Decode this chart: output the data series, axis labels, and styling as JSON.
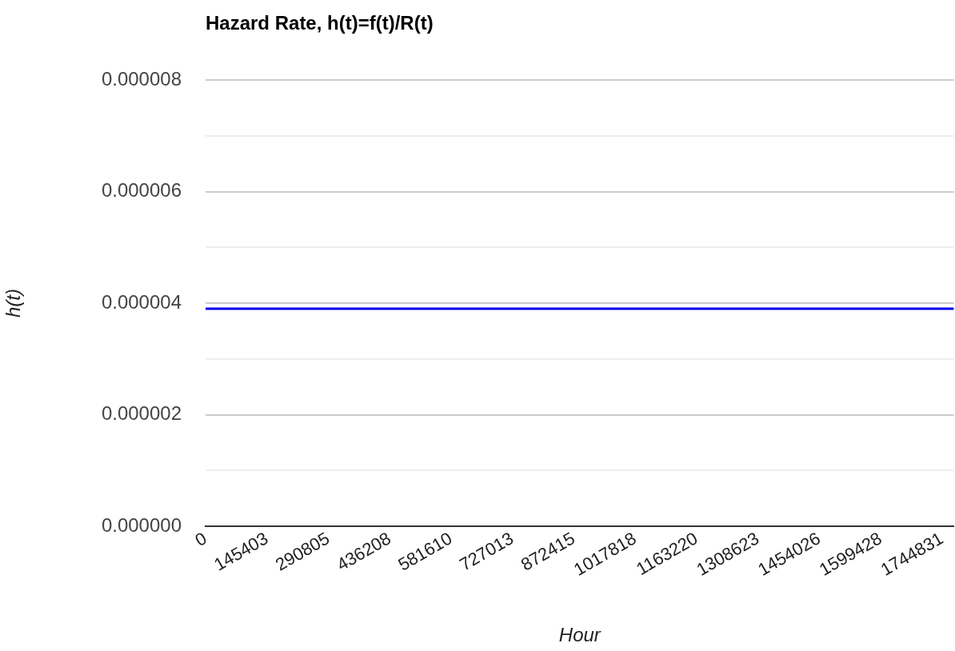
{
  "chart_data": {
    "type": "line",
    "title": "Hazard Rate, h(t)=f(t)/R(t)",
    "xlabel": "Hour",
    "ylabel": "h(t)",
    "x": [
      0,
      1773000
    ],
    "series": [
      {
        "color": "#0000ee",
        "values": [
          3.9e-06,
          3.9e-06
        ]
      }
    ],
    "xlim": [
      0,
      1773000
    ],
    "xticks": [
      0,
      145403,
      290805,
      436208,
      581610,
      727013,
      872415,
      1017818,
      1163220,
      1308623,
      1454026,
      1599428,
      1744831
    ],
    "ylim": [
      0,
      8e-06
    ],
    "yticks": [
      {
        "value": 0,
        "label": "0.000000"
      },
      {
        "value": 1e-06,
        "label": null
      },
      {
        "value": 2e-06,
        "label": "0.000002"
      },
      {
        "value": 3e-06,
        "label": null
      },
      {
        "value": 4e-06,
        "label": "0.000004"
      },
      {
        "value": 5e-06,
        "label": null
      },
      {
        "value": 6e-06,
        "label": "0.000006"
      },
      {
        "value": 7e-06,
        "label": null
      },
      {
        "value": 8e-06,
        "label": "0.000008"
      }
    ],
    "grid": "y",
    "legend": false,
    "marker": "none",
    "line_style": "solid"
  }
}
